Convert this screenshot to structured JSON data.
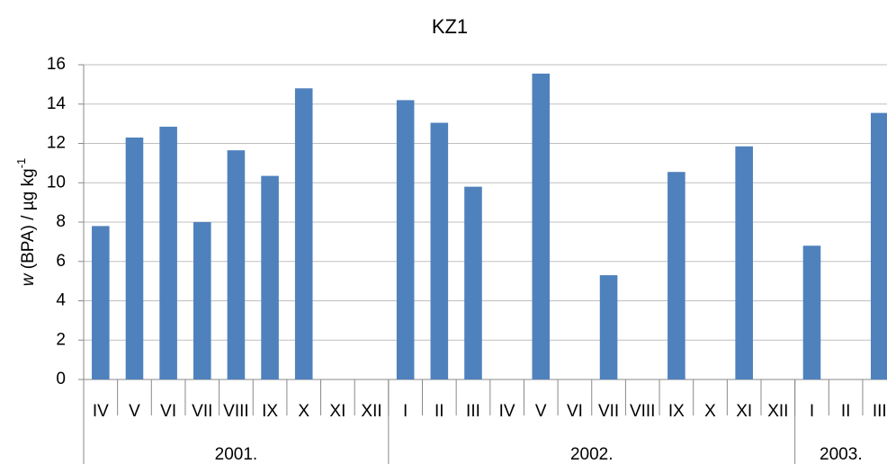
{
  "chart_data": {
    "type": "bar",
    "title": "KZ1",
    "ylabel": {
      "var": "w",
      "text": " (BPA) / µg kg",
      "sup": "-1"
    },
    "groups": [
      {
        "label": "2001.",
        "categories": [
          "IV",
          "V",
          "VI",
          "VII",
          "VIII",
          "IX",
          "X",
          "XI",
          "XII"
        ]
      },
      {
        "label": "2002.",
        "categories": [
          "I",
          "II",
          "III",
          "IV",
          "V",
          "VI",
          "VII",
          "VIII",
          "IX",
          "X",
          "XI",
          "XII"
        ]
      },
      {
        "label": "2003.",
        "categories": [
          "I",
          "II",
          "III"
        ]
      }
    ],
    "values": [
      7.8,
      12.3,
      12.85,
      8.0,
      11.65,
      10.35,
      14.8,
      null,
      null,
      14.2,
      13.05,
      9.8,
      null,
      15.55,
      null,
      5.3,
      null,
      10.55,
      null,
      11.85,
      null,
      6.8,
      null,
      13.55
    ],
    "color": "#4f81bd",
    "ylim": [
      0,
      16
    ],
    "yticks": [
      0,
      2,
      4,
      6,
      8,
      10,
      12,
      14,
      16
    ],
    "grid": true
  }
}
